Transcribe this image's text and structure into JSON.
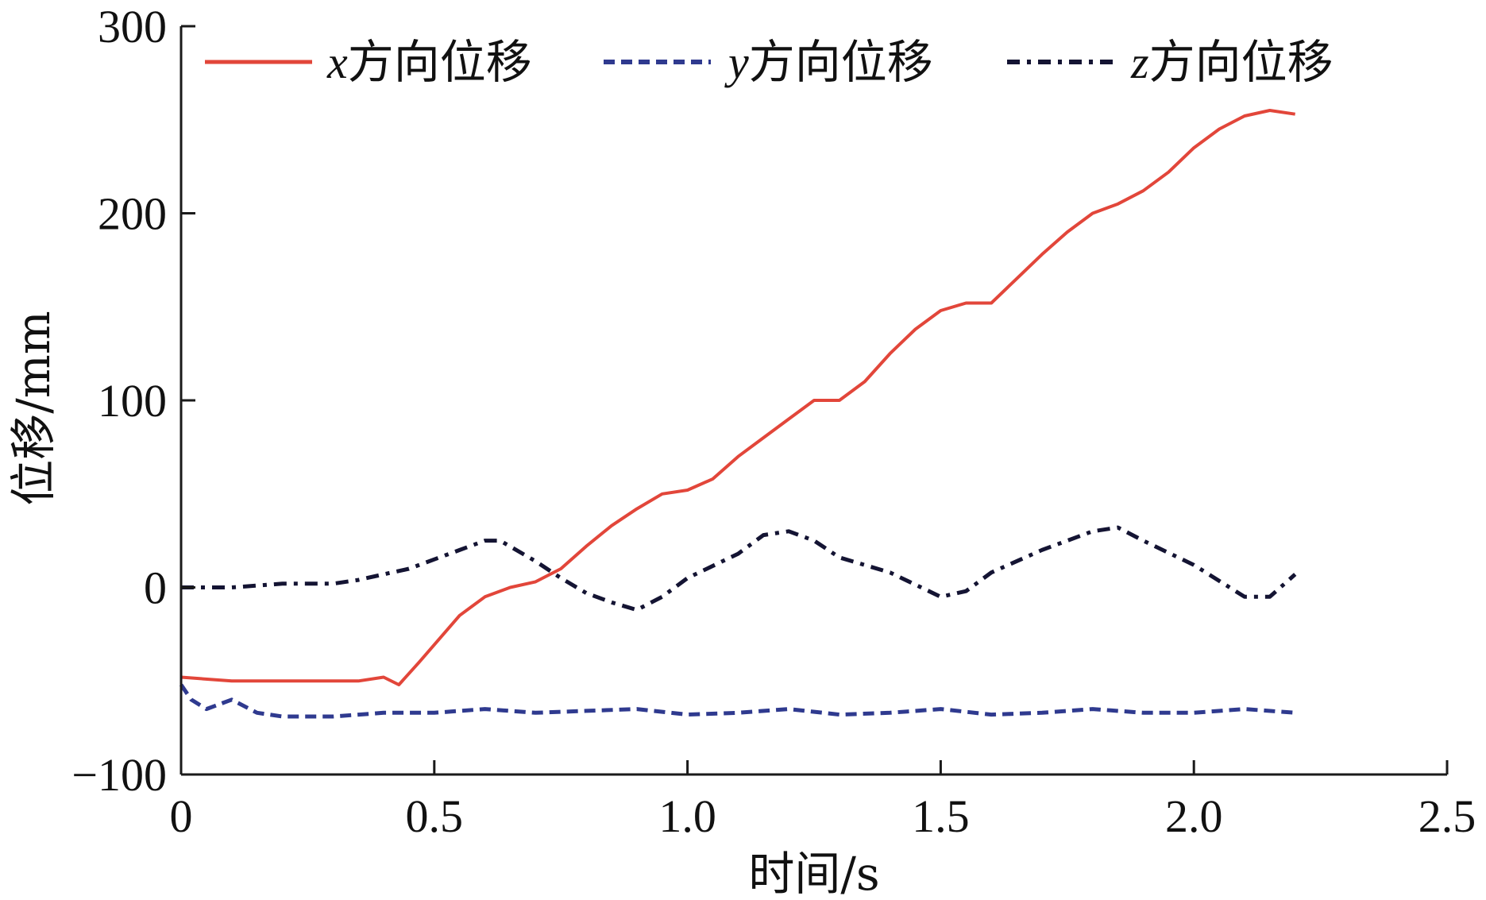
{
  "chart_data": {
    "type": "line",
    "xlabel": "时间/s",
    "ylabel": "位移/mm",
    "xlim": [
      0,
      2.5
    ],
    "ylim": [
      -100,
      300
    ],
    "xticks": [
      "0",
      "0.5",
      "1.0",
      "1.5",
      "2.0",
      "2.5"
    ],
    "xtick_values": [
      0,
      0.5,
      1.0,
      1.5,
      2.0,
      2.5
    ],
    "yticks": [
      "300",
      "200",
      "100",
      "0",
      "−100"
    ],
    "ytick_values": [
      300,
      200,
      100,
      0,
      -100
    ],
    "grid": false,
    "legend_position": "top",
    "series": [
      {
        "name": "x方向位移",
        "legend_var": "x",
        "legend_text": "方向位移",
        "color": "#e2463a",
        "style": "solid",
        "x": [
          0,
          0.1,
          0.2,
          0.3,
          0.35,
          0.4,
          0.43,
          0.47,
          0.55,
          0.6,
          0.65,
          0.7,
          0.75,
          0.8,
          0.85,
          0.9,
          0.95,
          1.0,
          1.05,
          1.1,
          1.15,
          1.2,
          1.25,
          1.3,
          1.35,
          1.4,
          1.45,
          1.5,
          1.55,
          1.6,
          1.65,
          1.7,
          1.75,
          1.8,
          1.85,
          1.9,
          1.95,
          2.0,
          2.05,
          2.1,
          2.15,
          2.2
        ],
        "y": [
          -48,
          -50,
          -50,
          -50,
          -50,
          -48,
          -52,
          -40,
          -15,
          -5,
          0,
          3,
          10,
          22,
          33,
          42,
          50,
          52,
          58,
          70,
          80,
          90,
          100,
          100,
          110,
          125,
          138,
          148,
          152,
          152,
          165,
          178,
          190,
          200,
          205,
          212,
          222,
          235,
          245,
          252,
          255,
          253
        ],
        "x_end": 2.2
      },
      {
        "name": "y方向位移",
        "legend_var": "y",
        "legend_text": "方向位移",
        "color": "#2f3a8f",
        "style": "dashed",
        "x": [
          0,
          0.02,
          0.05,
          0.1,
          0.15,
          0.2,
          0.3,
          0.4,
          0.5,
          0.6,
          0.7,
          0.8,
          0.9,
          1.0,
          1.1,
          1.2,
          1.3,
          1.4,
          1.5,
          1.6,
          1.7,
          1.8,
          1.9,
          2.0,
          2.1,
          2.2
        ],
        "y": [
          -52,
          -60,
          -65,
          -60,
          -67,
          -69,
          -69,
          -67,
          -67,
          -65,
          -67,
          -66,
          -65,
          -68,
          -67,
          -65,
          -68,
          -67,
          -65,
          -68,
          -67,
          -65,
          -67,
          -67,
          -65,
          -67
        ]
      },
      {
        "name": "z方向位移",
        "legend_var": "z",
        "legend_text": "方向位移",
        "color": "#141433",
        "style": "dashdot",
        "x": [
          0,
          0.1,
          0.2,
          0.3,
          0.35,
          0.4,
          0.45,
          0.5,
          0.55,
          0.6,
          0.63,
          0.7,
          0.75,
          0.8,
          0.85,
          0.9,
          0.95,
          1.0,
          1.1,
          1.15,
          1.2,
          1.25,
          1.3,
          1.4,
          1.5,
          1.55,
          1.6,
          1.7,
          1.8,
          1.85,
          1.9,
          2.0,
          2.1,
          2.15,
          2.2
        ],
        "y": [
          0,
          0,
          2,
          2,
          4,
          7,
          10,
          15,
          20,
          25,
          25,
          14,
          5,
          -3,
          -8,
          -12,
          -5,
          5,
          18,
          28,
          30,
          25,
          16,
          8,
          -5,
          -2,
          8,
          20,
          30,
          32,
          25,
          12,
          -5,
          -5,
          7
        ]
      }
    ]
  }
}
